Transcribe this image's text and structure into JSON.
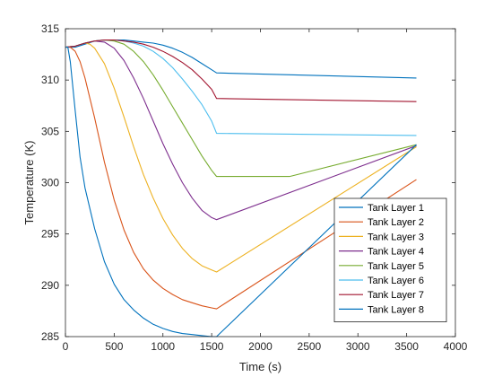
{
  "chart_data": {
    "type": "line",
    "title": "",
    "xlabel": "Time (s)",
    "ylabel": "Temperature (K)",
    "xlim": [
      0,
      4000
    ],
    "ylim": [
      285,
      315
    ],
    "xticks": [
      0,
      500,
      1000,
      1500,
      2000,
      2500,
      3000,
      3500,
      4000
    ],
    "yticks": [
      285,
      290,
      295,
      300,
      305,
      310,
      315
    ],
    "grid": false,
    "legend_position": "bottom-right",
    "series": [
      {
        "name": "Tank Layer 1",
        "color": "#0072BD",
        "x": [
          0,
          100,
          200,
          300,
          400,
          500,
          600,
          700,
          800,
          900,
          1000,
          1100,
          1200,
          1300,
          1400,
          1500,
          1550,
          3600
        ],
        "y": [
          313.2,
          313.2,
          313.5,
          313.8,
          313.9,
          313.9,
          313.9,
          313.8,
          313.7,
          313.6,
          313.4,
          313.1,
          312.7,
          312.2,
          311.6,
          311.0,
          310.7,
          310.2
        ]
      },
      {
        "name": "Tank Layer 2",
        "color": "#D95319",
        "x": [
          0,
          50,
          100,
          150,
          200,
          300,
          400,
          500,
          600,
          700,
          800,
          900,
          1000,
          1100,
          1200,
          1300,
          1400,
          1500,
          1550,
          3600
        ],
        "y": [
          313.2,
          313.2,
          312.8,
          311.8,
          310.2,
          306.3,
          302.0,
          298.3,
          295.4,
          293.2,
          291.6,
          290.5,
          289.7,
          289.1,
          288.6,
          288.3,
          288.0,
          287.8,
          287.7,
          300.3
        ]
      },
      {
        "name": "Tank Layer 3",
        "color": "#EDB120",
        "x": [
          0,
          100,
          200,
          250,
          300,
          400,
          500,
          600,
          700,
          800,
          900,
          1000,
          1100,
          1200,
          1300,
          1400,
          1500,
          1550,
          3600
        ],
        "y": [
          313.2,
          313.3,
          313.6,
          313.5,
          313.1,
          311.6,
          309.2,
          306.4,
          303.5,
          300.8,
          298.5,
          296.5,
          294.9,
          293.6,
          292.6,
          291.9,
          291.5,
          291.3,
          303.5
        ]
      },
      {
        "name": "Tank Layer 4",
        "color": "#7E2F8E",
        "x": [
          0,
          100,
          200,
          300,
          400,
          500,
          600,
          700,
          800,
          900,
          1000,
          1100,
          1200,
          1300,
          1400,
          1500,
          1550,
          3600
        ],
        "y": [
          313.2,
          313.3,
          313.6,
          313.8,
          313.7,
          313.1,
          311.9,
          310.2,
          308.2,
          306.0,
          303.8,
          301.8,
          300.0,
          298.5,
          297.3,
          296.6,
          296.4,
          303.6
        ]
      },
      {
        "name": "Tank Layer 5",
        "color": "#77AC30",
        "x": [
          0,
          100,
          200,
          300,
          400,
          500,
          600,
          700,
          800,
          900,
          1000,
          1100,
          1200,
          1300,
          1400,
          1500,
          1550,
          2300,
          3600
        ],
        "y": [
          313.2,
          313.3,
          313.6,
          313.8,
          313.9,
          313.8,
          313.5,
          312.8,
          311.8,
          310.5,
          309.0,
          307.4,
          305.8,
          304.2,
          302.6,
          301.2,
          300.6,
          300.6,
          303.7
        ]
      },
      {
        "name": "Tank Layer 6",
        "color": "#4DBEEE",
        "x": [
          0,
          100,
          200,
          300,
          400,
          500,
          600,
          700,
          800,
          900,
          1000,
          1100,
          1200,
          1300,
          1400,
          1500,
          1550,
          3600
        ],
        "y": [
          313.2,
          313.3,
          313.6,
          313.8,
          313.9,
          313.9,
          313.8,
          313.6,
          313.3,
          312.8,
          312.1,
          311.2,
          310.1,
          308.9,
          307.6,
          306.0,
          304.8,
          304.6
        ]
      },
      {
        "name": "Tank Layer 7",
        "color": "#A2142F",
        "x": [
          0,
          100,
          200,
          300,
          400,
          500,
          600,
          700,
          800,
          900,
          1000,
          1100,
          1200,
          1300,
          1400,
          1500,
          1550,
          3600
        ],
        "y": [
          313.2,
          313.3,
          313.6,
          313.8,
          313.9,
          313.9,
          313.8,
          313.7,
          313.5,
          313.2,
          312.8,
          312.3,
          311.7,
          311.0,
          310.1,
          309.1,
          308.2,
          307.9
        ]
      },
      {
        "name": "Tank Layer 8",
        "color": "#0072BD",
        "x": [
          0,
          25,
          50,
          100,
          150,
          200,
          300,
          400,
          500,
          600,
          700,
          800,
          900,
          1000,
          1100,
          1200,
          1300,
          1400,
          1500,
          1550,
          3600
        ],
        "y": [
          313.2,
          313.2,
          311.8,
          307.0,
          302.5,
          299.5,
          295.5,
          292.3,
          290.1,
          288.6,
          287.6,
          286.8,
          286.2,
          285.8,
          285.5,
          285.3,
          285.2,
          285.1,
          285.0,
          285.0,
          303.7
        ]
      }
    ]
  }
}
